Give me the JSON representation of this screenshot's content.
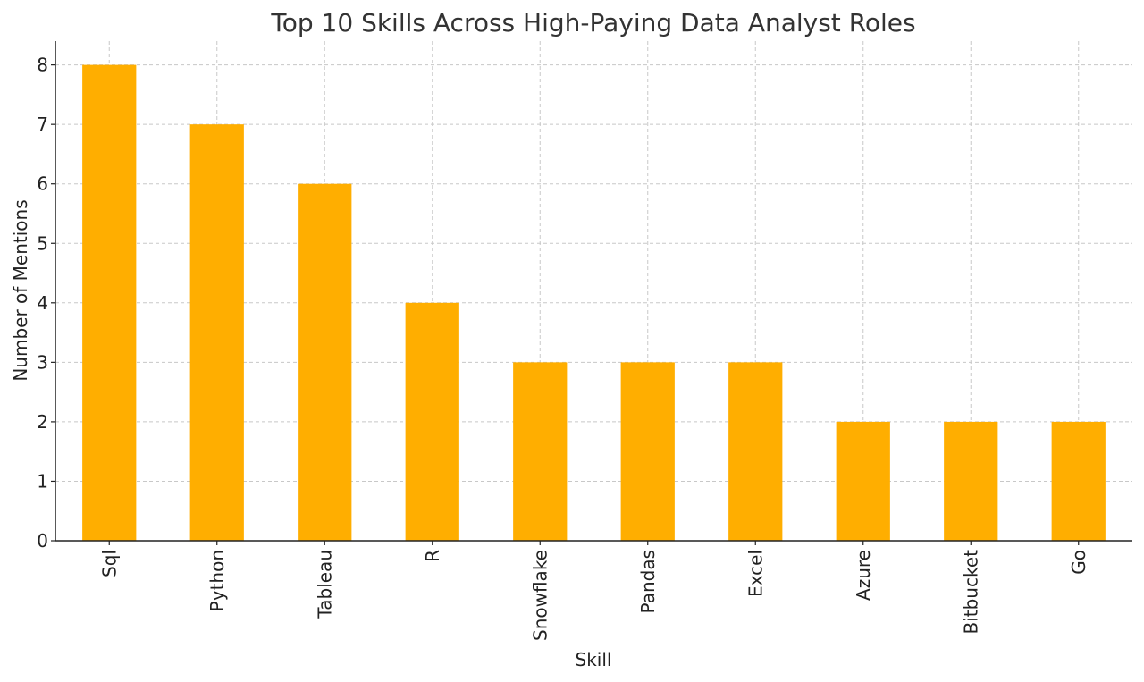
{
  "chart_data": {
    "type": "bar",
    "title": "Top 10 Skills Across High-Paying Data Analyst Roles",
    "xlabel": "Skill",
    "ylabel": "Number of Mentions",
    "categories": [
      "Sql",
      "Python",
      "Tableau",
      "R",
      "Snowflake",
      "Pandas",
      "Excel",
      "Azure",
      "Bitbucket",
      "Go"
    ],
    "values": [
      8,
      7,
      6,
      4,
      3,
      3,
      3,
      2,
      2,
      2
    ],
    "ylim": [
      0,
      8.4
    ],
    "yticks": [
      0,
      1,
      2,
      3,
      4,
      5,
      6,
      7,
      8
    ],
    "bar_color": "#ffae00",
    "grid": true
  }
}
